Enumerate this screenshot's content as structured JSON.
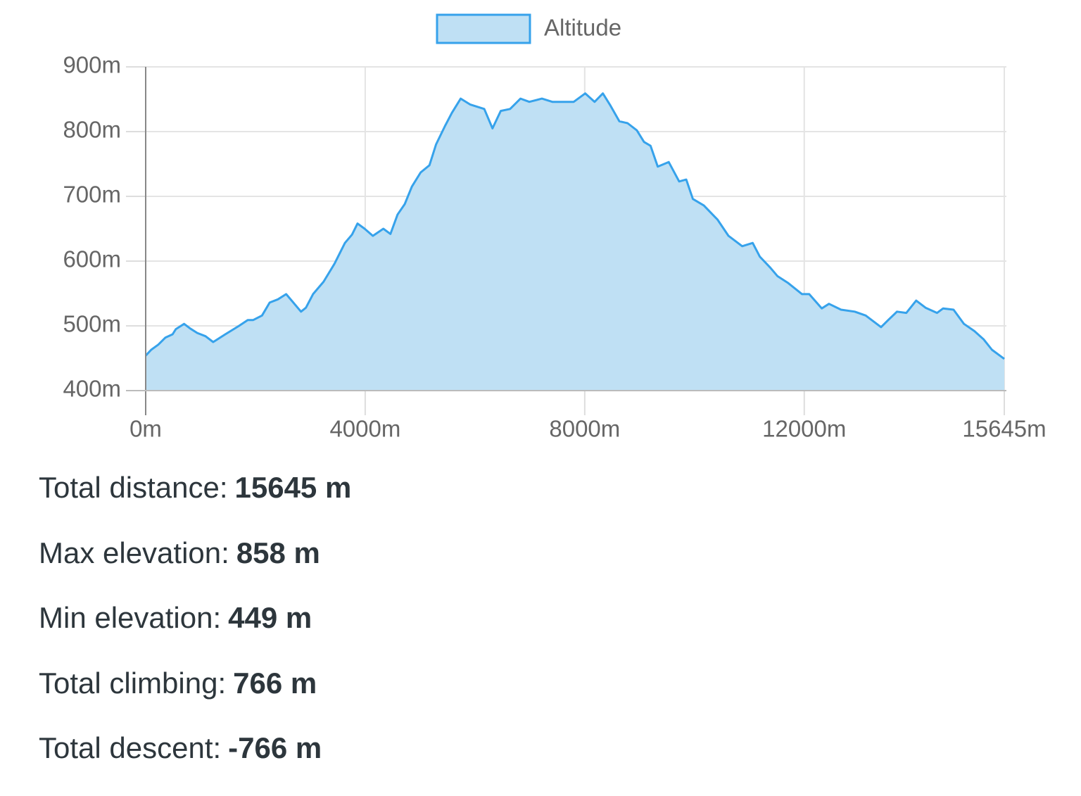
{
  "chart_data": {
    "type": "area",
    "x": [
      0,
      100,
      230,
      360,
      490,
      550,
      700,
      810,
      940,
      1090,
      1230,
      1450,
      1700,
      1860,
      1960,
      2120,
      2260,
      2410,
      2560,
      2670,
      2830,
      2920,
      3050,
      3240,
      3440,
      3630,
      3760,
      3860,
      3990,
      4140,
      4330,
      4460,
      4590,
      4720,
      4850,
      5010,
      5170,
      5290,
      5450,
      5580,
      5740,
      5910,
      6170,
      6320,
      6470,
      6640,
      6830,
      6990,
      7220,
      7410,
      7600,
      7800,
      8010,
      8180,
      8330,
      8470,
      8630,
      8780,
      8950,
      9080,
      9200,
      9330,
      9530,
      9720,
      9850,
      9970,
      10170,
      10420,
      10620,
      10870,
      11060,
      11190,
      11380,
      11510,
      11710,
      11960,
      12090,
      12320,
      12450,
      12670,
      12920,
      13120,
      13400,
      13530,
      13690,
      13860,
      14040,
      14210,
      14420,
      14530,
      14720,
      14910,
      15100,
      15270,
      15420,
      15645
    ],
    "series": [
      {
        "name": "Altitude",
        "color": "#36a2eb",
        "fill": "#bfe0f4",
        "values": [
          454,
          463,
          471,
          482,
          487,
          495,
          503,
          496,
          489,
          484,
          475,
          487,
          500,
          509,
          509,
          516,
          536,
          541,
          549,
          538,
          522,
          528,
          549,
          568,
          596,
          628,
          641,
          658,
          650,
          639,
          650,
          642,
          672,
          688,
          715,
          737,
          748,
          780,
          808,
          829,
          851,
          842,
          835,
          805,
          832,
          835,
          851,
          846,
          851,
          846,
          846,
          846,
          859,
          846,
          859,
          840,
          816,
          813,
          802,
          784,
          778,
          746,
          753,
          723,
          726,
          696,
          686,
          664,
          639,
          623,
          628,
          607,
          590,
          577,
          566,
          549,
          549,
          527,
          534,
          525,
          522,
          516,
          498,
          509,
          522,
          520,
          539,
          528,
          520,
          527,
          525,
          503,
          492,
          479,
          463,
          449
        ]
      }
    ],
    "xlim": [
      0,
      15645
    ],
    "xticks": [
      {
        "value": 0,
        "label": "0m"
      },
      {
        "value": 4000,
        "label": "4000m"
      },
      {
        "value": 8000,
        "label": "8000m"
      },
      {
        "value": 12000,
        "label": "12000m"
      },
      {
        "value": 15645,
        "label": "15645m"
      }
    ],
    "ylim": [
      400,
      900
    ],
    "yticks": [
      {
        "value": 400,
        "label": "400m"
      },
      {
        "value": 500,
        "label": "500m"
      },
      {
        "value": 600,
        "label": "600m"
      },
      {
        "value": 700,
        "label": "700m"
      },
      {
        "value": 800,
        "label": "800m"
      },
      {
        "value": 900,
        "label": "900m"
      }
    ],
    "grid": true,
    "legend": "top"
  },
  "stats": [
    {
      "label": "Total distance:",
      "value": "15645 m"
    },
    {
      "label": "Max elevation:",
      "value": "858 m"
    },
    {
      "label": "Min elevation:",
      "value": "449 m"
    },
    {
      "label": "Total climbing:",
      "value": "766 m"
    },
    {
      "label": "Total descent:",
      "value": "-766 m"
    }
  ]
}
